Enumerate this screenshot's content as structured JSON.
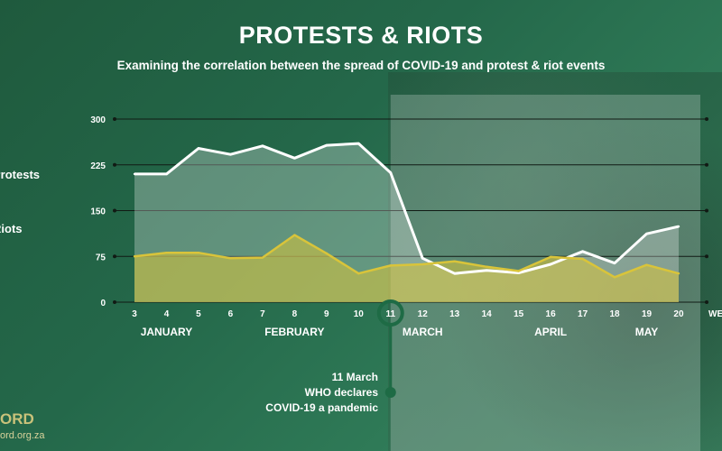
{
  "header": {
    "title": "PROTESTS & RIOTS",
    "subtitle": "Examining the correlation between the spread of COVID-19 and protest & riot events"
  },
  "legend": {
    "protests": "Protests",
    "riots": "Riots"
  },
  "footer": {
    "logo": "ORD",
    "url": "ord.org.za"
  },
  "colors": {
    "protests": "#ffffff",
    "riots": "#d9c43a",
    "highlight": "#1e6b45"
  },
  "chart_data": {
    "type": "line",
    "xlabel": "WE",
    "ylim": [
      0,
      300
    ],
    "yticks": [
      "300",
      "225",
      "150",
      "75",
      "0"
    ],
    "x": [
      "3",
      "4",
      "5",
      "6",
      "7",
      "8",
      "9",
      "10",
      "11",
      "12",
      "13",
      "14",
      "15",
      "16",
      "17",
      "18",
      "19",
      "20"
    ],
    "series": [
      {
        "name": "Protests",
        "values": [
          210,
          210,
          252,
          242,
          256,
          236,
          257,
          260,
          212,
          72,
          47,
          52,
          48,
          62,
          83,
          64,
          112,
          124
        ]
      },
      {
        "name": "Riots",
        "values": [
          75,
          81,
          81,
          72,
          73,
          110,
          80,
          47,
          60,
          62,
          67,
          58,
          51,
          74,
          71,
          41,
          61,
          47
        ]
      }
    ],
    "months": [
      {
        "label": "JANUARY",
        "week": "4"
      },
      {
        "label": "FEBRUARY",
        "week": "8"
      },
      {
        "label": "MARCH",
        "week": "12"
      },
      {
        "label": "APRIL",
        "week": "16"
      },
      {
        "label": "MAY",
        "week": "19"
      }
    ],
    "shaded_from_week": "11",
    "highlight_week": "11",
    "annotation": [
      "11 March",
      "WHO declares",
      "COVID-19 a pandemic"
    ]
  }
}
